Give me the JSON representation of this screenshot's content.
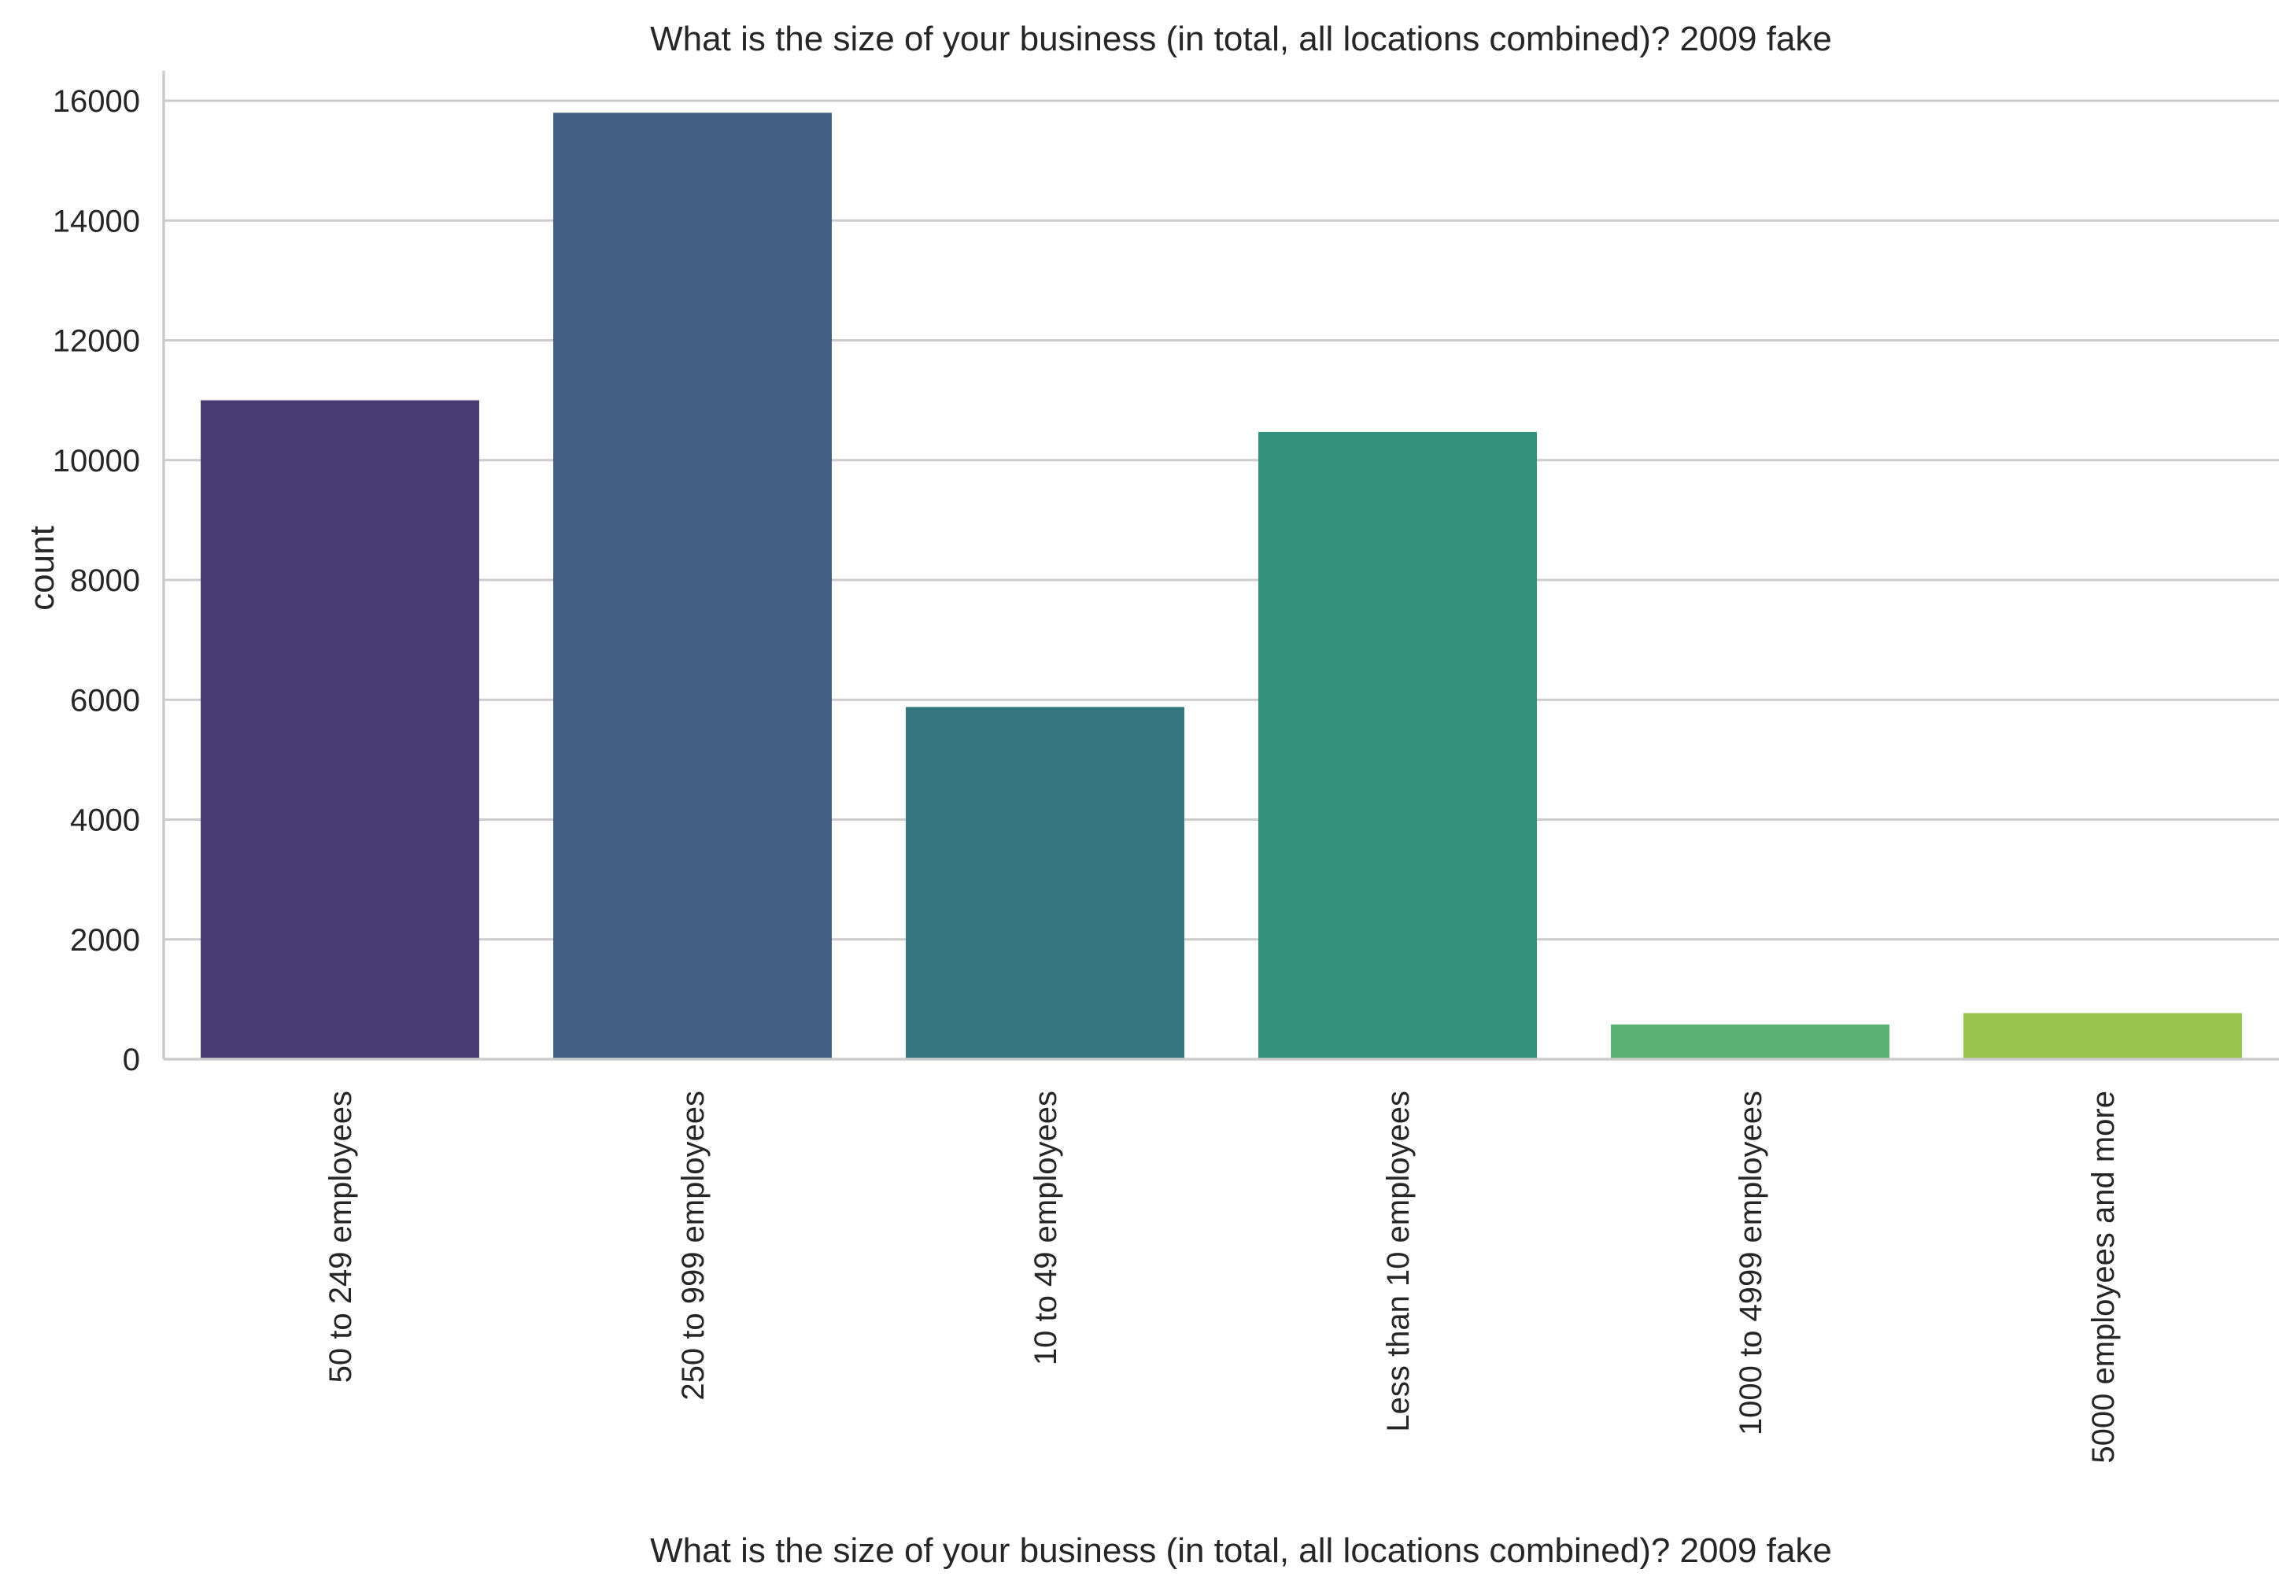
{
  "chart_data": {
    "type": "bar",
    "title": "What is the size of your business (in total, all locations combined)? 2009 fake",
    "xlabel": "What is the size of your business (in total, all locations combined)? 2009 fake",
    "ylabel": "count",
    "categories": [
      "50 to 249 employees",
      "250 to 999 employees",
      "10 to 49 employees",
      "Less than 10 employees",
      "1000 to 4999 employees",
      "5000 employees and more"
    ],
    "values": [
      11000,
      15800,
      5880,
      10470,
      580,
      770
    ],
    "colors": [
      "#483b73",
      "#415f81",
      "#35777f",
      "#32927e",
      "#5bb173",
      "#98c54c"
    ],
    "ylim": [
      0,
      16500
    ],
    "yticks": [
      0,
      2000,
      4000,
      6000,
      8000,
      10000,
      12000,
      14000,
      16000
    ],
    "grid": "y",
    "legend": "none"
  }
}
